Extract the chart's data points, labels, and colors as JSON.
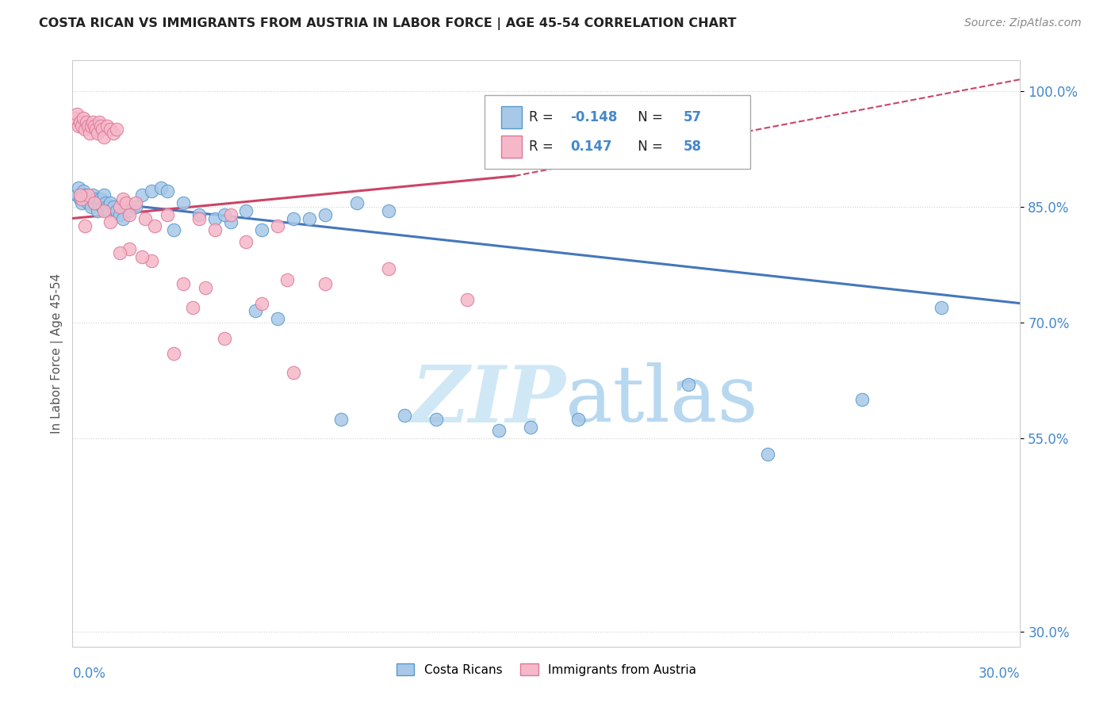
{
  "title": "COSTA RICAN VS IMMIGRANTS FROM AUSTRIA IN LABOR FORCE | AGE 45-54 CORRELATION CHART",
  "source": "Source: ZipAtlas.com",
  "ylabel": "In Labor Force | Age 45-54",
  "yticks": [
    30.0,
    55.0,
    70.0,
    85.0,
    100.0
  ],
  "ytick_labels": [
    "30.0%",
    "55.0%",
    "70.0%",
    "85.0%",
    "100.0%"
  ],
  "xmin": 0.0,
  "xmax": 30.0,
  "ymin": 28.0,
  "ymax": 104.0,
  "blue_R": -0.148,
  "blue_N": 57,
  "pink_R": 0.147,
  "pink_N": 58,
  "blue_color": "#a8c8e8",
  "blue_edge_color": "#5599cc",
  "blue_line_color": "#4477bb",
  "pink_color": "#f5b8c8",
  "pink_edge_color": "#dd7799",
  "pink_line_color": "#cc4466",
  "watermark_color": "#d0e8f5",
  "legend_label_blue": "Costa Ricans",
  "legend_label_pink": "Immigrants from Austria",
  "blue_trend": [
    86.0,
    72.5
  ],
  "pink_trend_solid": [
    83.5,
    89.0
  ],
  "pink_solid_xend": 14.0,
  "pink_dash_yend": 101.5,
  "blue_scatter_x": [
    0.15,
    0.2,
    0.25,
    0.3,
    0.35,
    0.4,
    0.5,
    0.55,
    0.6,
    0.65,
    0.7,
    0.75,
    0.8,
    0.85,
    0.9,
    0.95,
    1.0,
    1.05,
    1.1,
    1.15,
    1.2,
    1.3,
    1.4,
    1.5,
    1.6,
    1.7,
    1.8,
    2.0,
    2.2,
    2.5,
    2.8,
    3.0,
    3.5,
    4.0,
    4.5,
    5.0,
    5.5,
    6.0,
    7.0,
    8.0,
    9.0,
    10.5,
    11.5,
    13.5,
    16.0,
    19.5,
    22.0,
    25.0,
    27.5,
    7.5,
    10.0,
    4.8,
    3.2,
    5.8,
    6.5,
    8.5,
    14.5
  ],
  "blue_scatter_y": [
    86.5,
    87.5,
    86.0,
    85.5,
    87.0,
    86.5,
    85.5,
    86.0,
    85.0,
    86.5,
    85.5,
    86.0,
    84.5,
    85.5,
    86.0,
    85.0,
    86.5,
    85.5,
    85.0,
    84.5,
    85.5,
    85.0,
    84.5,
    84.0,
    83.5,
    85.0,
    84.5,
    85.0,
    86.5,
    87.0,
    87.5,
    87.0,
    85.5,
    84.0,
    83.5,
    83.0,
    84.5,
    82.0,
    83.5,
    84.0,
    85.5,
    58.0,
    57.5,
    56.0,
    57.5,
    62.0,
    53.0,
    60.0,
    72.0,
    83.5,
    84.5,
    84.0,
    82.0,
    71.5,
    70.5,
    57.5,
    56.5
  ],
  "pink_scatter_x": [
    0.1,
    0.15,
    0.2,
    0.25,
    0.3,
    0.35,
    0.4,
    0.45,
    0.5,
    0.55,
    0.6,
    0.65,
    0.7,
    0.75,
    0.8,
    0.85,
    0.9,
    0.95,
    1.0,
    1.1,
    1.2,
    1.3,
    1.4,
    1.5,
    1.6,
    1.7,
    1.8,
    2.0,
    2.3,
    2.6,
    3.0,
    3.5,
    4.0,
    4.5,
    5.0,
    5.5,
    6.5,
    8.0,
    10.0,
    12.5,
    0.3,
    0.5,
    1.0,
    1.2,
    1.8,
    2.5,
    3.2,
    4.2,
    6.0,
    0.25,
    0.4,
    0.7,
    1.5,
    2.2,
    3.8,
    7.0,
    4.8,
    6.8
  ],
  "pink_scatter_y": [
    96.5,
    97.0,
    95.5,
    96.0,
    95.5,
    96.5,
    95.0,
    96.0,
    95.5,
    94.5,
    95.5,
    96.0,
    95.5,
    95.0,
    94.5,
    96.0,
    95.5,
    95.0,
    94.0,
    95.5,
    95.0,
    94.5,
    95.0,
    85.0,
    86.0,
    85.5,
    84.0,
    85.5,
    83.5,
    82.5,
    84.0,
    75.0,
    83.5,
    82.0,
    84.0,
    80.5,
    82.5,
    75.0,
    77.0,
    73.0,
    86.0,
    86.5,
    84.5,
    83.0,
    79.5,
    78.0,
    66.0,
    74.5,
    72.5,
    86.5,
    82.5,
    85.5,
    79.0,
    78.5,
    72.0,
    63.5,
    68.0,
    75.5
  ]
}
